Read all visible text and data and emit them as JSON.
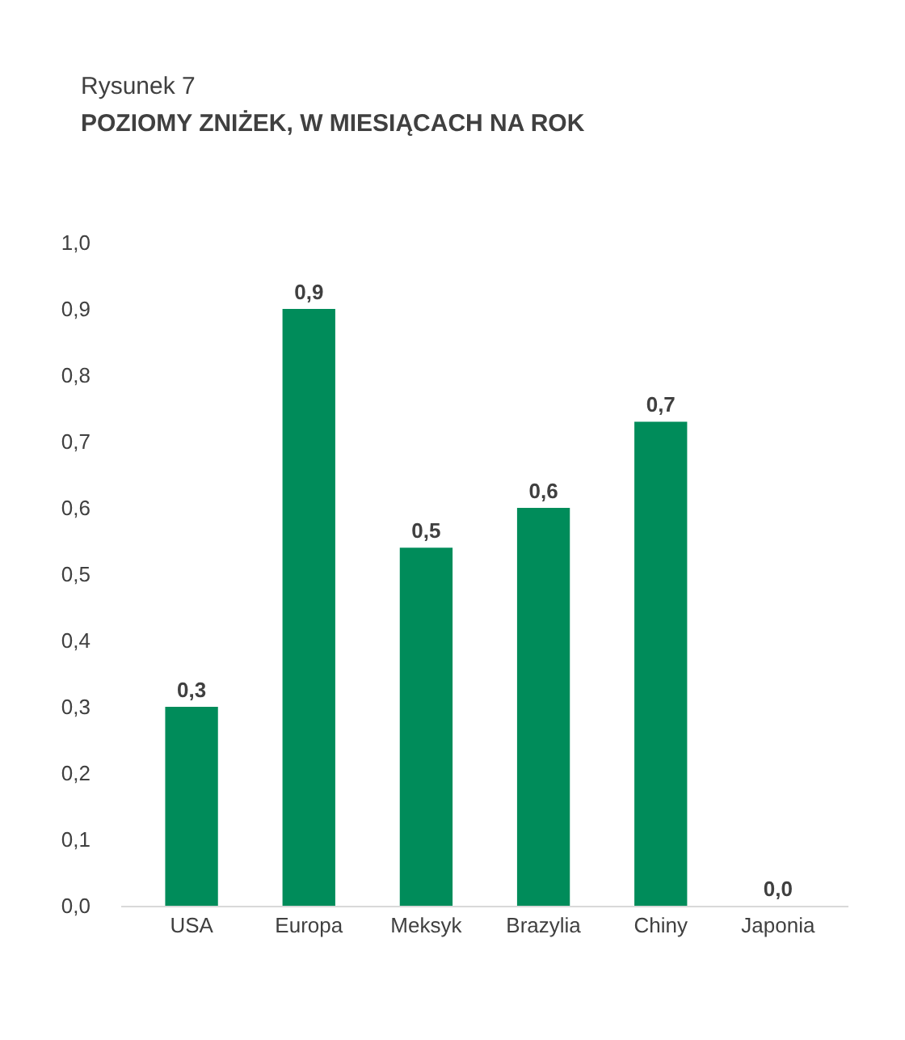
{
  "chart_data": {
    "type": "bar",
    "title": "Rysunek 7",
    "subtitle": "POZIOMY ZNIŻEK, W MIESIĄCACH NA ROK",
    "categories": [
      "USA",
      "Europa",
      "Meksyk",
      "Brazylia",
      "Chiny",
      "Japonia"
    ],
    "values": [
      0.3,
      0.9,
      0.54,
      0.6,
      0.73,
      0
    ],
    "value_labels": [
      "0,3",
      "0,9",
      "0,5",
      "0,6",
      "0,7",
      "0,0"
    ],
    "color": "#008c5a",
    "ylim": [
      0,
      1
    ],
    "yticks": [
      {
        "value": 0,
        "label": "0,0"
      },
      {
        "value": 0.1,
        "label": "0,1"
      },
      {
        "value": 0.2,
        "label": "0,2"
      },
      {
        "value": 0.3,
        "label": "0,3"
      },
      {
        "value": 0.4,
        "label": "0,4"
      },
      {
        "value": 0.5,
        "label": "0,5"
      },
      {
        "value": 0.6,
        "label": "0,6"
      },
      {
        "value": 0.7,
        "label": "0,7"
      },
      {
        "value": 0.8,
        "label": "0,8"
      },
      {
        "value": 0.9,
        "label": "0,9"
      },
      {
        "value": 1,
        "label": "1,0"
      }
    ],
    "grid": false,
    "legend": false
  }
}
